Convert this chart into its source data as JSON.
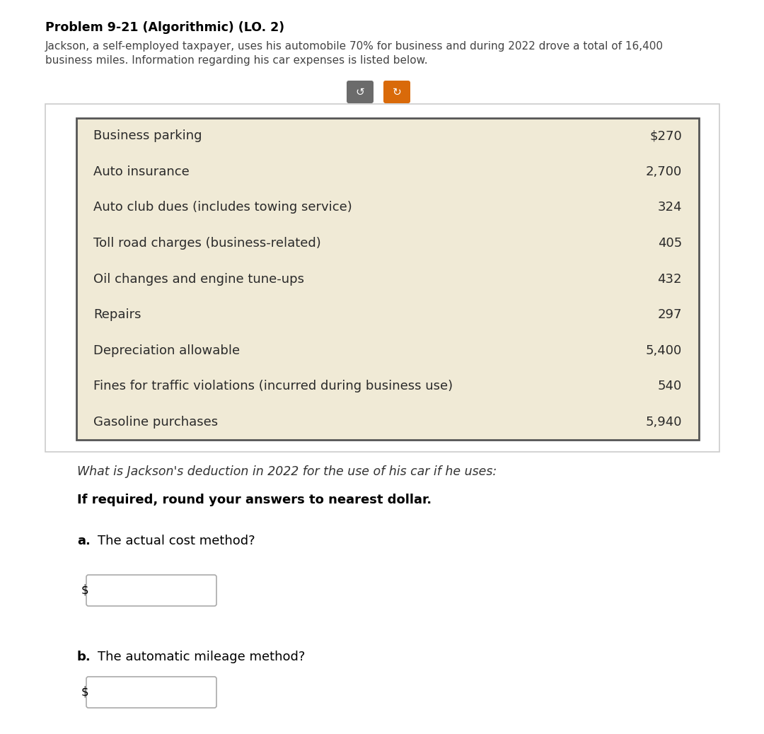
{
  "title": "Problem 9-21 (Algorithmic) (LO. 2)",
  "intro_line1": "Jackson, a self-employed taxpayer, uses his automobile 70% for business and during 2022 drove a total of 16,400",
  "intro_line2": "business miles. Information regarding his car expenses is listed below.",
  "table_items": [
    {
      "label": "Business parking",
      "value": "$270"
    },
    {
      "label": "Auto insurance",
      "value": "2,700"
    },
    {
      "label": "Auto club dues (includes towing service)",
      "value": "324"
    },
    {
      "label": "Toll road charges (business-related)",
      "value": "405"
    },
    {
      "label": "Oil changes and engine tune-ups",
      "value": "432"
    },
    {
      "label": "Repairs",
      "value": "297"
    },
    {
      "label": "Depreciation allowable",
      "value": "5,400"
    },
    {
      "label": "Fines for traffic violations (incurred during business use)",
      "value": "540"
    },
    {
      "label": "Gasoline purchases",
      "value": "5,940"
    }
  ],
  "question": "What is Jackson's deduction in 2022 for the use of his car if he uses:",
  "instruction": "If required, round your answers to nearest dollar.",
  "part_a_label": "a.",
  "part_a_text": "The actual cost method?",
  "part_b_label": "b.",
  "part_b_text": "The automatic mileage method?",
  "bg_color": "#ffffff",
  "table_bg_color": "#f0ead6",
  "table_border_color": "#555555",
  "outer_bg_color": "#ffffff",
  "outer_border_color": "#cccccc",
  "title_color": "#000000",
  "intro_color": "#444444",
  "table_text_color": "#2a2a2a",
  "question_color": "#333333",
  "instruction_color": "#000000",
  "input_border_color": "#aaaaaa",
  "button_gray": "#6b6b6b",
  "button_orange": "#d96a0a"
}
